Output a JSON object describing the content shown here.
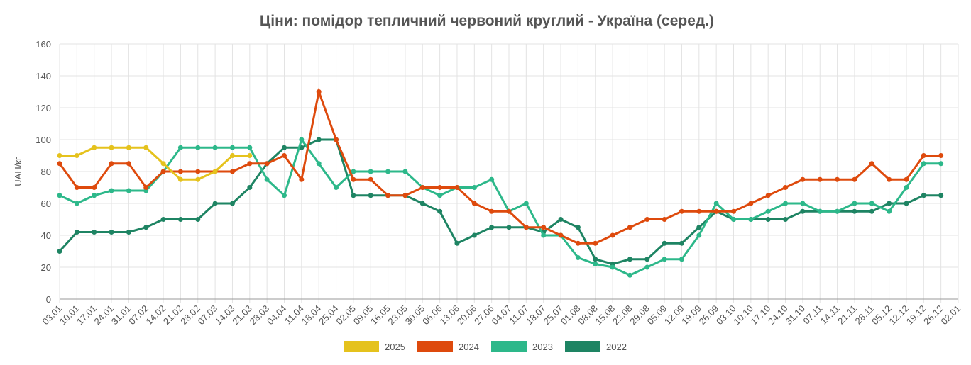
{
  "chart_data": {
    "type": "line",
    "title": "Ціни: помідор тепличний червоний круглий - Україна (серед.)",
    "y_label": "UAH/кг",
    "categories": [
      "03.01",
      "10.01",
      "17.01",
      "24.01",
      "31.01",
      "07.02",
      "14.02",
      "21.02",
      "28.02",
      "07.03",
      "14.03",
      "21.03",
      "28.03",
      "04.04",
      "11.04",
      "18.04",
      "25.04",
      "02.05",
      "09.05",
      "16.05",
      "23.05",
      "30.05",
      "06.06",
      "13.06",
      "20.06",
      "27.06",
      "04.07",
      "11.07",
      "18.07",
      "25.07",
      "01.08",
      "08.08",
      "15.08",
      "22.08",
      "29.08",
      "05.09",
      "12.09",
      "19.09",
      "26.09",
      "03.10",
      "10.10",
      "17.10",
      "24.10",
      "31.10",
      "07.11",
      "14.11",
      "21.11",
      "28.11",
      "05.12",
      "12.12",
      "19.12",
      "26.12",
      "02.01"
    ],
    "series": [
      {
        "name": "2025",
        "color": "#e5c21d",
        "values": [
          90,
          90,
          95,
          95,
          95,
          95,
          85,
          75,
          75,
          80,
          90,
          90,
          null,
          null,
          null,
          null,
          null,
          null,
          null,
          null,
          null,
          null,
          null,
          null,
          null,
          null,
          null,
          null,
          null,
          null,
          null,
          null,
          null,
          null,
          null,
          null,
          null,
          null,
          null,
          null,
          null,
          null,
          null,
          null,
          null,
          null,
          null,
          null,
          null,
          null,
          null,
          null,
          null
        ]
      },
      {
        "name": "2024",
        "color": "#de4a0d",
        "values": [
          85,
          70,
          70,
          85,
          85,
          70,
          80,
          80,
          80,
          80,
          80,
          85,
          85,
          90,
          75,
          130,
          100,
          75,
          75,
          65,
          65,
          70,
          70,
          70,
          60,
          55,
          55,
          45,
          45,
          40,
          35,
          35,
          40,
          45,
          50,
          50,
          55,
          55,
          55,
          55,
          60,
          65,
          70,
          75,
          75,
          75,
          75,
          85,
          75,
          75,
          90,
          90,
          null
        ]
      },
      {
        "name": "2023",
        "color": "#2db88a",
        "values": [
          65,
          60,
          65,
          68,
          68,
          68,
          80,
          95,
          95,
          95,
          95,
          95,
          75,
          65,
          100,
          85,
          70,
          80,
          80,
          80,
          80,
          70,
          65,
          70,
          70,
          75,
          55,
          60,
          40,
          40,
          26,
          22,
          20,
          15,
          20,
          25,
          25,
          40,
          60,
          50,
          50,
          55,
          60,
          60,
          55,
          55,
          60,
          60,
          55,
          70,
          85,
          85,
          null
        ]
      },
      {
        "name": "2022",
        "color": "#1e8463",
        "values": [
          30,
          42,
          42,
          42,
          42,
          45,
          50,
          50,
          50,
          60,
          60,
          70,
          85,
          95,
          95,
          100,
          100,
          65,
          65,
          65,
          65,
          60,
          55,
          35,
          40,
          45,
          45,
          45,
          42,
          50,
          45,
          25,
          22,
          25,
          25,
          35,
          35,
          45,
          55,
          50,
          50,
          50,
          50,
          55,
          55,
          55,
          55,
          55,
          60,
          60,
          65,
          65,
          null
        ]
      }
    ],
    "ylim": [
      0,
      160
    ],
    "yticks": [
      0,
      20,
      40,
      60,
      80,
      100,
      120,
      140,
      160
    ],
    "grid": true,
    "legend": "bottom"
  }
}
